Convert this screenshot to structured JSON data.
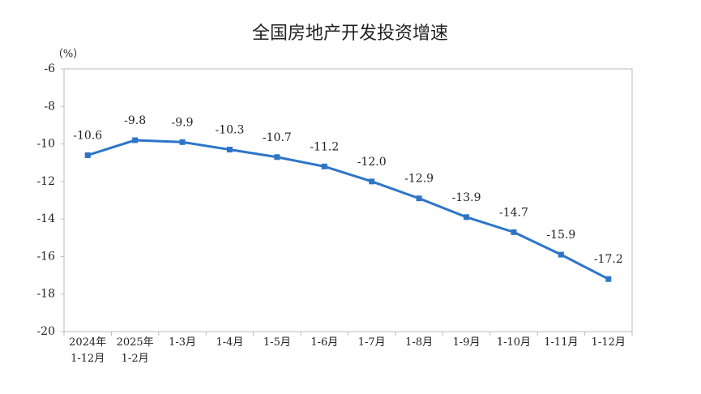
{
  "chart_data": {
    "type": "line",
    "title": "全国房地产开发投资增速",
    "y_unit": "（%）",
    "categories": [
      "2024年\n1-12月",
      "2025年\n1-2月",
      "1-3月",
      "1-4月",
      "1-5月",
      "1-6月",
      "1-7月",
      "1-8月",
      "1-9月",
      "1-10月",
      "1-11月",
      "1-12月"
    ],
    "series": [
      {
        "color": "#2e75c8",
        "values": [
          -10.6,
          -9.8,
          -9.9,
          -10.3,
          -10.7,
          -11.2,
          -12.0,
          -12.9,
          -13.9,
          -14.7,
          -15.9,
          -17.2
        ],
        "value_labels": [
          "-10.6",
          "-9.8",
          "-9.9",
          "-10.3",
          "-10.7",
          "-11.2",
          "-12.0",
          "-12.9",
          "-13.9",
          "-14.7",
          "-15.9",
          "-17.2"
        ]
      }
    ],
    "ylim": [
      -20,
      -6
    ],
    "yticks": [
      -6,
      -8,
      -10,
      -12,
      -14,
      -16,
      -18,
      -20
    ]
  }
}
